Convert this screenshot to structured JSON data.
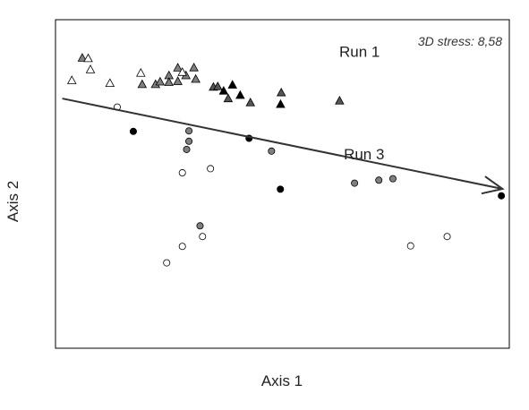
{
  "chart_data": {
    "type": "scatter",
    "title": "",
    "xlabel": "Axis 1",
    "ylabel": "Axis 2",
    "stress_annotation": "3D stress: 8,58",
    "group_labels": [
      {
        "name": "Run 1",
        "x": 0.34,
        "y": 0.775
      },
      {
        "name": "Run 3",
        "x": 0.36,
        "y": 0.15
      }
    ],
    "xlim": [
      -1,
      1
    ],
    "ylim": [
      -1,
      1
    ],
    "grid": false,
    "trend_arrow": {
      "from": [
        -0.97,
        0.52
      ],
      "to": [
        0.97,
        -0.03
      ]
    },
    "colors": {
      "white": "#ffffff",
      "light": "#b5b5b5",
      "grey": "#808080",
      "dark": "#555555",
      "black": "#000000"
    },
    "series": [
      {
        "marker": "triangle",
        "shade": "grey",
        "points": [
          [
            -0.882,
            0.767
          ],
          [
            -0.5,
            0.66
          ],
          [
            -0.425,
            0.66
          ],
          [
            -0.39,
            0.708
          ],
          [
            -0.461,
            0.707
          ],
          [
            -0.618,
            0.606
          ],
          [
            -0.559,
            0.606
          ],
          [
            -0.539,
            0.622
          ],
          [
            -0.5,
            0.619
          ],
          [
            -0.461,
            0.625
          ],
          [
            -0.382,
            0.638
          ]
        ]
      },
      {
        "marker": "triangle",
        "shade": "white",
        "points": [
          [
            -0.856,
            0.764
          ],
          [
            -0.846,
            0.696
          ],
          [
            -0.928,
            0.63
          ],
          [
            -0.76,
            0.613
          ],
          [
            -0.624,
            0.675
          ],
          [
            -0.441,
            0.68
          ]
        ]
      },
      {
        "marker": "triangle",
        "shade": "dark",
        "points": [
          [
            -0.304,
            0.59
          ],
          [
            -0.285,
            0.593
          ],
          [
            -0.239,
            0.52
          ],
          [
            -0.141,
            0.495
          ],
          [
            -0.005,
            0.556
          ],
          [
            0.252,
            0.506
          ]
        ]
      },
      {
        "marker": "triangle",
        "shade": "black",
        "points": [
          [
            -0.22,
            0.603
          ],
          [
            -0.259,
            0.566
          ],
          [
            -0.186,
            0.54
          ],
          [
            -0.008,
            0.485
          ]
        ]
      },
      {
        "marker": "circle",
        "shade": "white",
        "points": [
          [
            -0.728,
            0.468
          ],
          [
            -0.441,
            0.068
          ],
          [
            -0.317,
            0.093
          ],
          [
            -0.352,
            -0.32
          ],
          [
            -0.441,
            -0.38
          ],
          [
            -0.51,
            -0.48
          ],
          [
            0.565,
            -0.377
          ],
          [
            0.726,
            -0.32
          ]
        ]
      },
      {
        "marker": "circle",
        "shade": "grey",
        "points": [
          [
            -0.422,
            0.21
          ],
          [
            -0.412,
            0.26
          ],
          [
            -0.412,
            0.323
          ],
          [
            -0.048,
            0.2
          ],
          [
            0.318,
            0.005
          ],
          [
            0.425,
            0.023
          ],
          [
            0.487,
            0.032
          ],
          [
            -0.363,
            -0.255
          ]
        ]
      },
      {
        "marker": "circle",
        "shade": "black",
        "points": [
          [
            -0.657,
            0.32
          ],
          [
            -0.147,
            0.278
          ],
          [
            -0.009,
            -0.032
          ],
          [
            0.965,
            -0.072
          ]
        ]
      }
    ]
  }
}
